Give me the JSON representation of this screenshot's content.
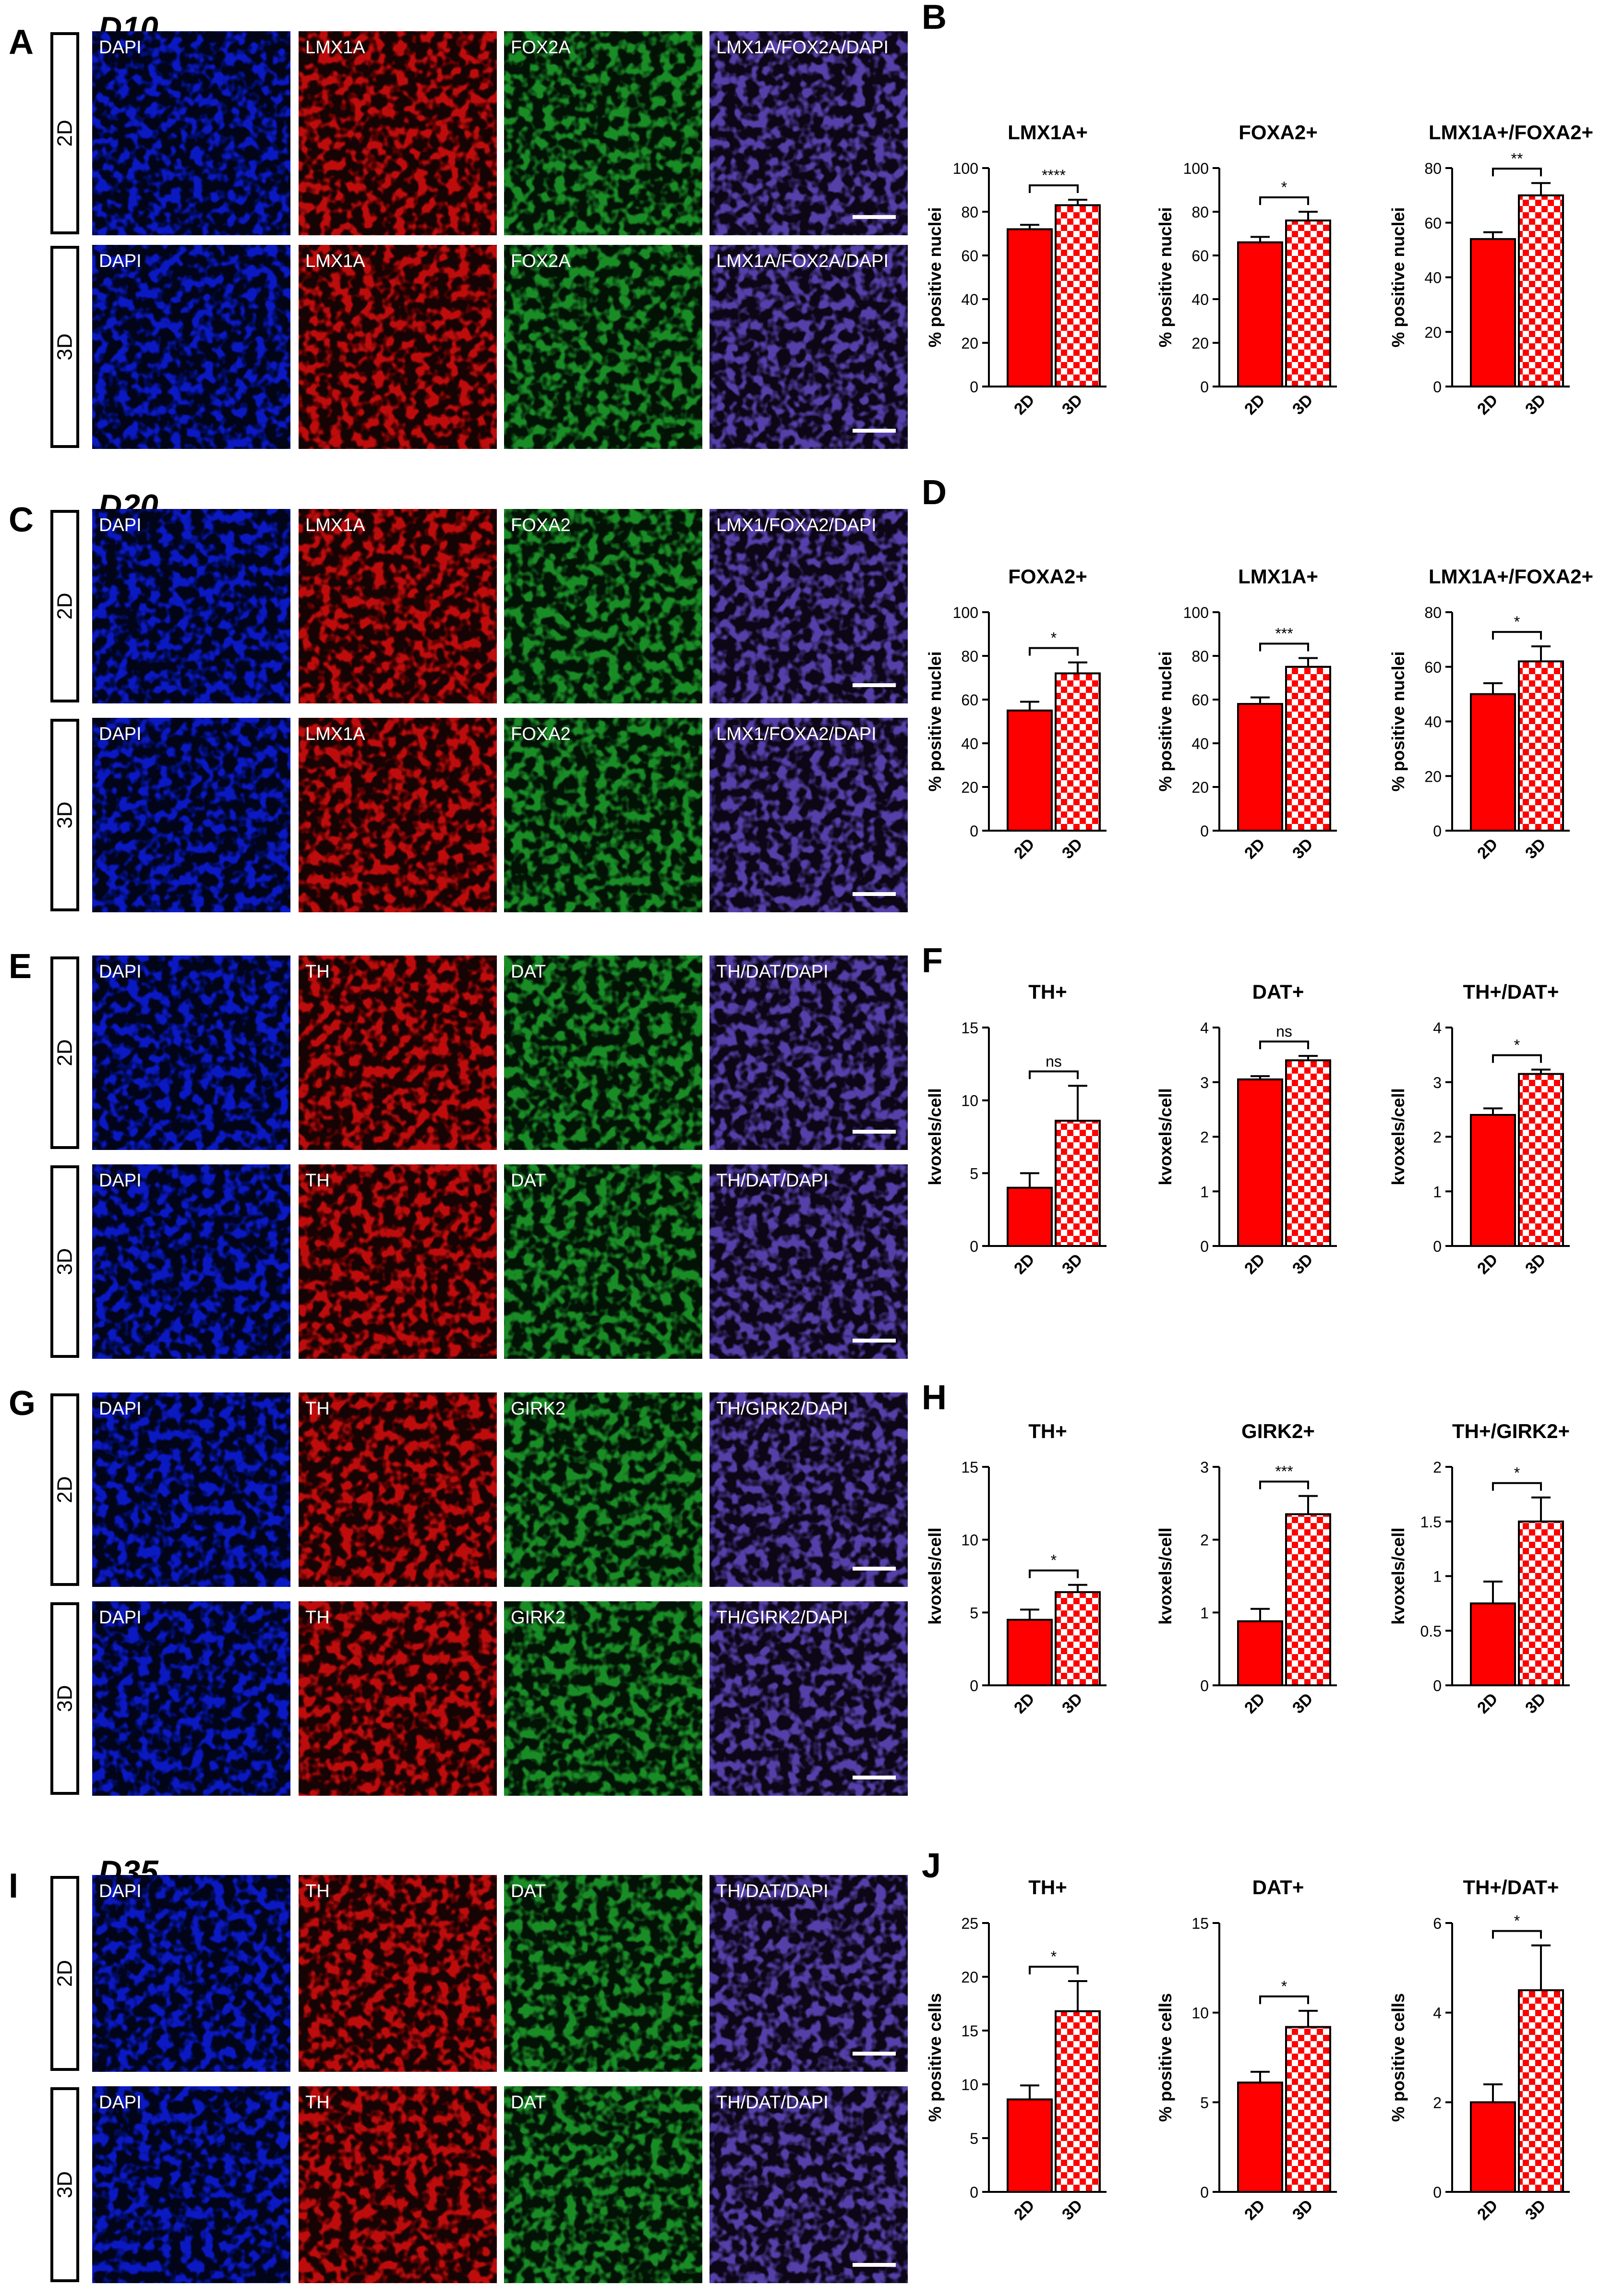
{
  "panels": [
    {
      "letter": "A",
      "day": "D10",
      "rows": [
        {
          "label": "2D",
          "channels": [
            "DAPI",
            "LMX1A",
            "FOX2A",
            "LMX1A/FOX2A/DAPI"
          ]
        },
        {
          "label": "3D",
          "channels": [
            "DAPI",
            "LMX1A",
            "FOX2A",
            "LMX1A/FOX2A/DAPI"
          ]
        }
      ]
    },
    {
      "letter": "C",
      "day": "D20",
      "rows": [
        {
          "label": "2D",
          "channels": [
            "DAPI",
            "LMX1A",
            "FOXA2",
            "LMX1/FOXA2/DAPI"
          ]
        },
        {
          "label": "3D",
          "channels": [
            "DAPI",
            "LMX1A",
            "FOXA2",
            "LMX1/FOXA2/DAPI"
          ]
        }
      ]
    },
    {
      "letter": "E",
      "day": "",
      "rows": [
        {
          "label": "2D",
          "channels": [
            "DAPI",
            "TH",
            "DAT",
            "TH/DAT/DAPI"
          ]
        },
        {
          "label": "3D",
          "channels": [
            "DAPI",
            "TH",
            "DAT",
            "TH/DAT/DAPI"
          ]
        }
      ]
    },
    {
      "letter": "G",
      "day": "",
      "rows": [
        {
          "label": "2D",
          "channels": [
            "DAPI",
            "TH",
            "GIRK2",
            "TH/GIRK2/DAPI"
          ]
        },
        {
          "label": "3D",
          "channels": [
            "DAPI",
            "TH",
            "GIRK2",
            "TH/GIRK2/DAPI"
          ]
        }
      ]
    },
    {
      "letter": "I",
      "day": "D35",
      "rows": [
        {
          "label": "2D",
          "channels": [
            "DAPI",
            "TH",
            "DAT",
            "TH/DAT/DAPI"
          ]
        },
        {
          "label": "3D",
          "channels": [
            "DAPI",
            "TH",
            "DAT",
            "TH/DAT/DAPI"
          ]
        }
      ]
    }
  ],
  "chart_data": [
    {
      "panel": "B",
      "type": "bar",
      "categories": [
        "2D",
        "3D"
      ],
      "ylabel": "% positive nuclei",
      "charts": [
        {
          "title": "LMX1A+",
          "values": [
            72,
            83
          ],
          "errors": [
            2,
            2.5
          ],
          "ylim": [
            0,
            100
          ],
          "yticks": [
            "0",
            "20",
            "40",
            "60",
            "80",
            "100"
          ],
          "significance": "****"
        },
        {
          "title": "FOXA2+",
          "values": [
            66,
            76
          ],
          "errors": [
            2.5,
            4
          ],
          "ylim": [
            0,
            100
          ],
          "yticks": [
            "0",
            "20",
            "40",
            "60",
            "80",
            "100"
          ],
          "significance": "*"
        },
        {
          "title": "LMX1A+/FOXA2+",
          "values": [
            54,
            70
          ],
          "errors": [
            2.5,
            4.5
          ],
          "ylim": [
            0,
            80
          ],
          "yticks": [
            "0",
            "20",
            "40",
            "60",
            "80"
          ],
          "significance": "**"
        }
      ]
    },
    {
      "panel": "D",
      "type": "bar",
      "categories": [
        "2D",
        "3D"
      ],
      "ylabel": "% positive nuclei",
      "charts": [
        {
          "title": "FOXA2+",
          "values": [
            55,
            72
          ],
          "errors": [
            4,
            5
          ],
          "ylim": [
            0,
            100
          ],
          "yticks": [
            "0",
            "20",
            "40",
            "60",
            "80",
            "100"
          ],
          "significance": "*"
        },
        {
          "title": "LMX1A+",
          "values": [
            58,
            75
          ],
          "errors": [
            3,
            4
          ],
          "ylim": [
            0,
            100
          ],
          "yticks": [
            "0",
            "20",
            "40",
            "60",
            "80",
            "100"
          ],
          "significance": "***"
        },
        {
          "title": "LMX1A+/FOXA2+",
          "values": [
            50,
            62
          ],
          "errors": [
            4,
            5.5
          ],
          "ylim": [
            0,
            80
          ],
          "yticks": [
            "0",
            "20",
            "40",
            "60",
            "80"
          ],
          "significance": "*"
        }
      ]
    },
    {
      "panel": "F",
      "type": "bar",
      "categories": [
        "2D",
        "3D"
      ],
      "ylabel": "kvoxels/cell",
      "charts": [
        {
          "title": "TH+",
          "values": [
            4.0,
            8.6
          ],
          "errors": [
            1.0,
            2.4
          ],
          "ylim": [
            0,
            15
          ],
          "yticks": [
            "0",
            "5",
            "10",
            "15"
          ],
          "significance": "ns"
        },
        {
          "title": "DAT+",
          "values": [
            3.05,
            3.4
          ],
          "errors": [
            0.06,
            0.08
          ],
          "ylim": [
            0,
            4
          ],
          "yticks": [
            "0",
            "1",
            "2",
            "3",
            "4"
          ],
          "significance": "ns"
        },
        {
          "title": "TH+/DAT+",
          "values": [
            2.4,
            3.15
          ],
          "errors": [
            0.12,
            0.08
          ],
          "ylim": [
            0,
            4
          ],
          "yticks": [
            "0",
            "1",
            "2",
            "3",
            "4"
          ],
          "significance": "*"
        }
      ]
    },
    {
      "panel": "H",
      "type": "bar",
      "categories": [
        "2D",
        "3D"
      ],
      "ylabel": "kvoxels/cell",
      "charts": [
        {
          "title": "TH+",
          "values": [
            4.5,
            6.4
          ],
          "errors": [
            0.7,
            0.5
          ],
          "ylim": [
            0,
            15
          ],
          "yticks": [
            "0",
            "5",
            "10",
            "15"
          ],
          "significance": "*"
        },
        {
          "title": "GIRK2+",
          "values": [
            0.88,
            2.35
          ],
          "errors": [
            0.17,
            0.25
          ],
          "ylim": [
            0,
            3
          ],
          "yticks": [
            "0",
            "1",
            "2",
            "3"
          ],
          "significance": "***"
        },
        {
          "title": "TH+/GIRK2+",
          "values": [
            0.75,
            1.5
          ],
          "errors": [
            0.2,
            0.22
          ],
          "ylim": [
            0,
            2
          ],
          "yticks": [
            "0",
            "0.5",
            "1",
            "1.5",
            "2"
          ],
          "significance": "*"
        }
      ]
    },
    {
      "panel": "J",
      "type": "bar",
      "categories": [
        "2D",
        "3D"
      ],
      "ylabel": "% positive cells",
      "charts": [
        {
          "title": "TH+",
          "values": [
            8.6,
            16.8
          ],
          "errors": [
            1.3,
            2.8
          ],
          "ylim": [
            0,
            25
          ],
          "yticks": [
            "0",
            "5",
            "10",
            "15",
            "20",
            "25"
          ],
          "significance": "*"
        },
        {
          "title": "DAT+",
          "values": [
            6.1,
            9.2
          ],
          "errors": [
            0.6,
            0.9
          ],
          "ylim": [
            0,
            15
          ],
          "yticks": [
            "0",
            "5",
            "10",
            "15"
          ],
          "significance": "*"
        },
        {
          "title": "TH+/DAT+",
          "values": [
            2.0,
            4.5
          ],
          "errors": [
            0.4,
            1.0
          ],
          "ylim": [
            0,
            6
          ],
          "yticks": [
            "0",
            "2",
            "4",
            "6"
          ],
          "significance": "*"
        }
      ]
    }
  ],
  "colors": {
    "bar_2d": "#ff0000",
    "dapi": "#0a1bd6",
    "red": "#d10b0b",
    "green": "#1d9a2a",
    "merge": "#5b47b8"
  }
}
